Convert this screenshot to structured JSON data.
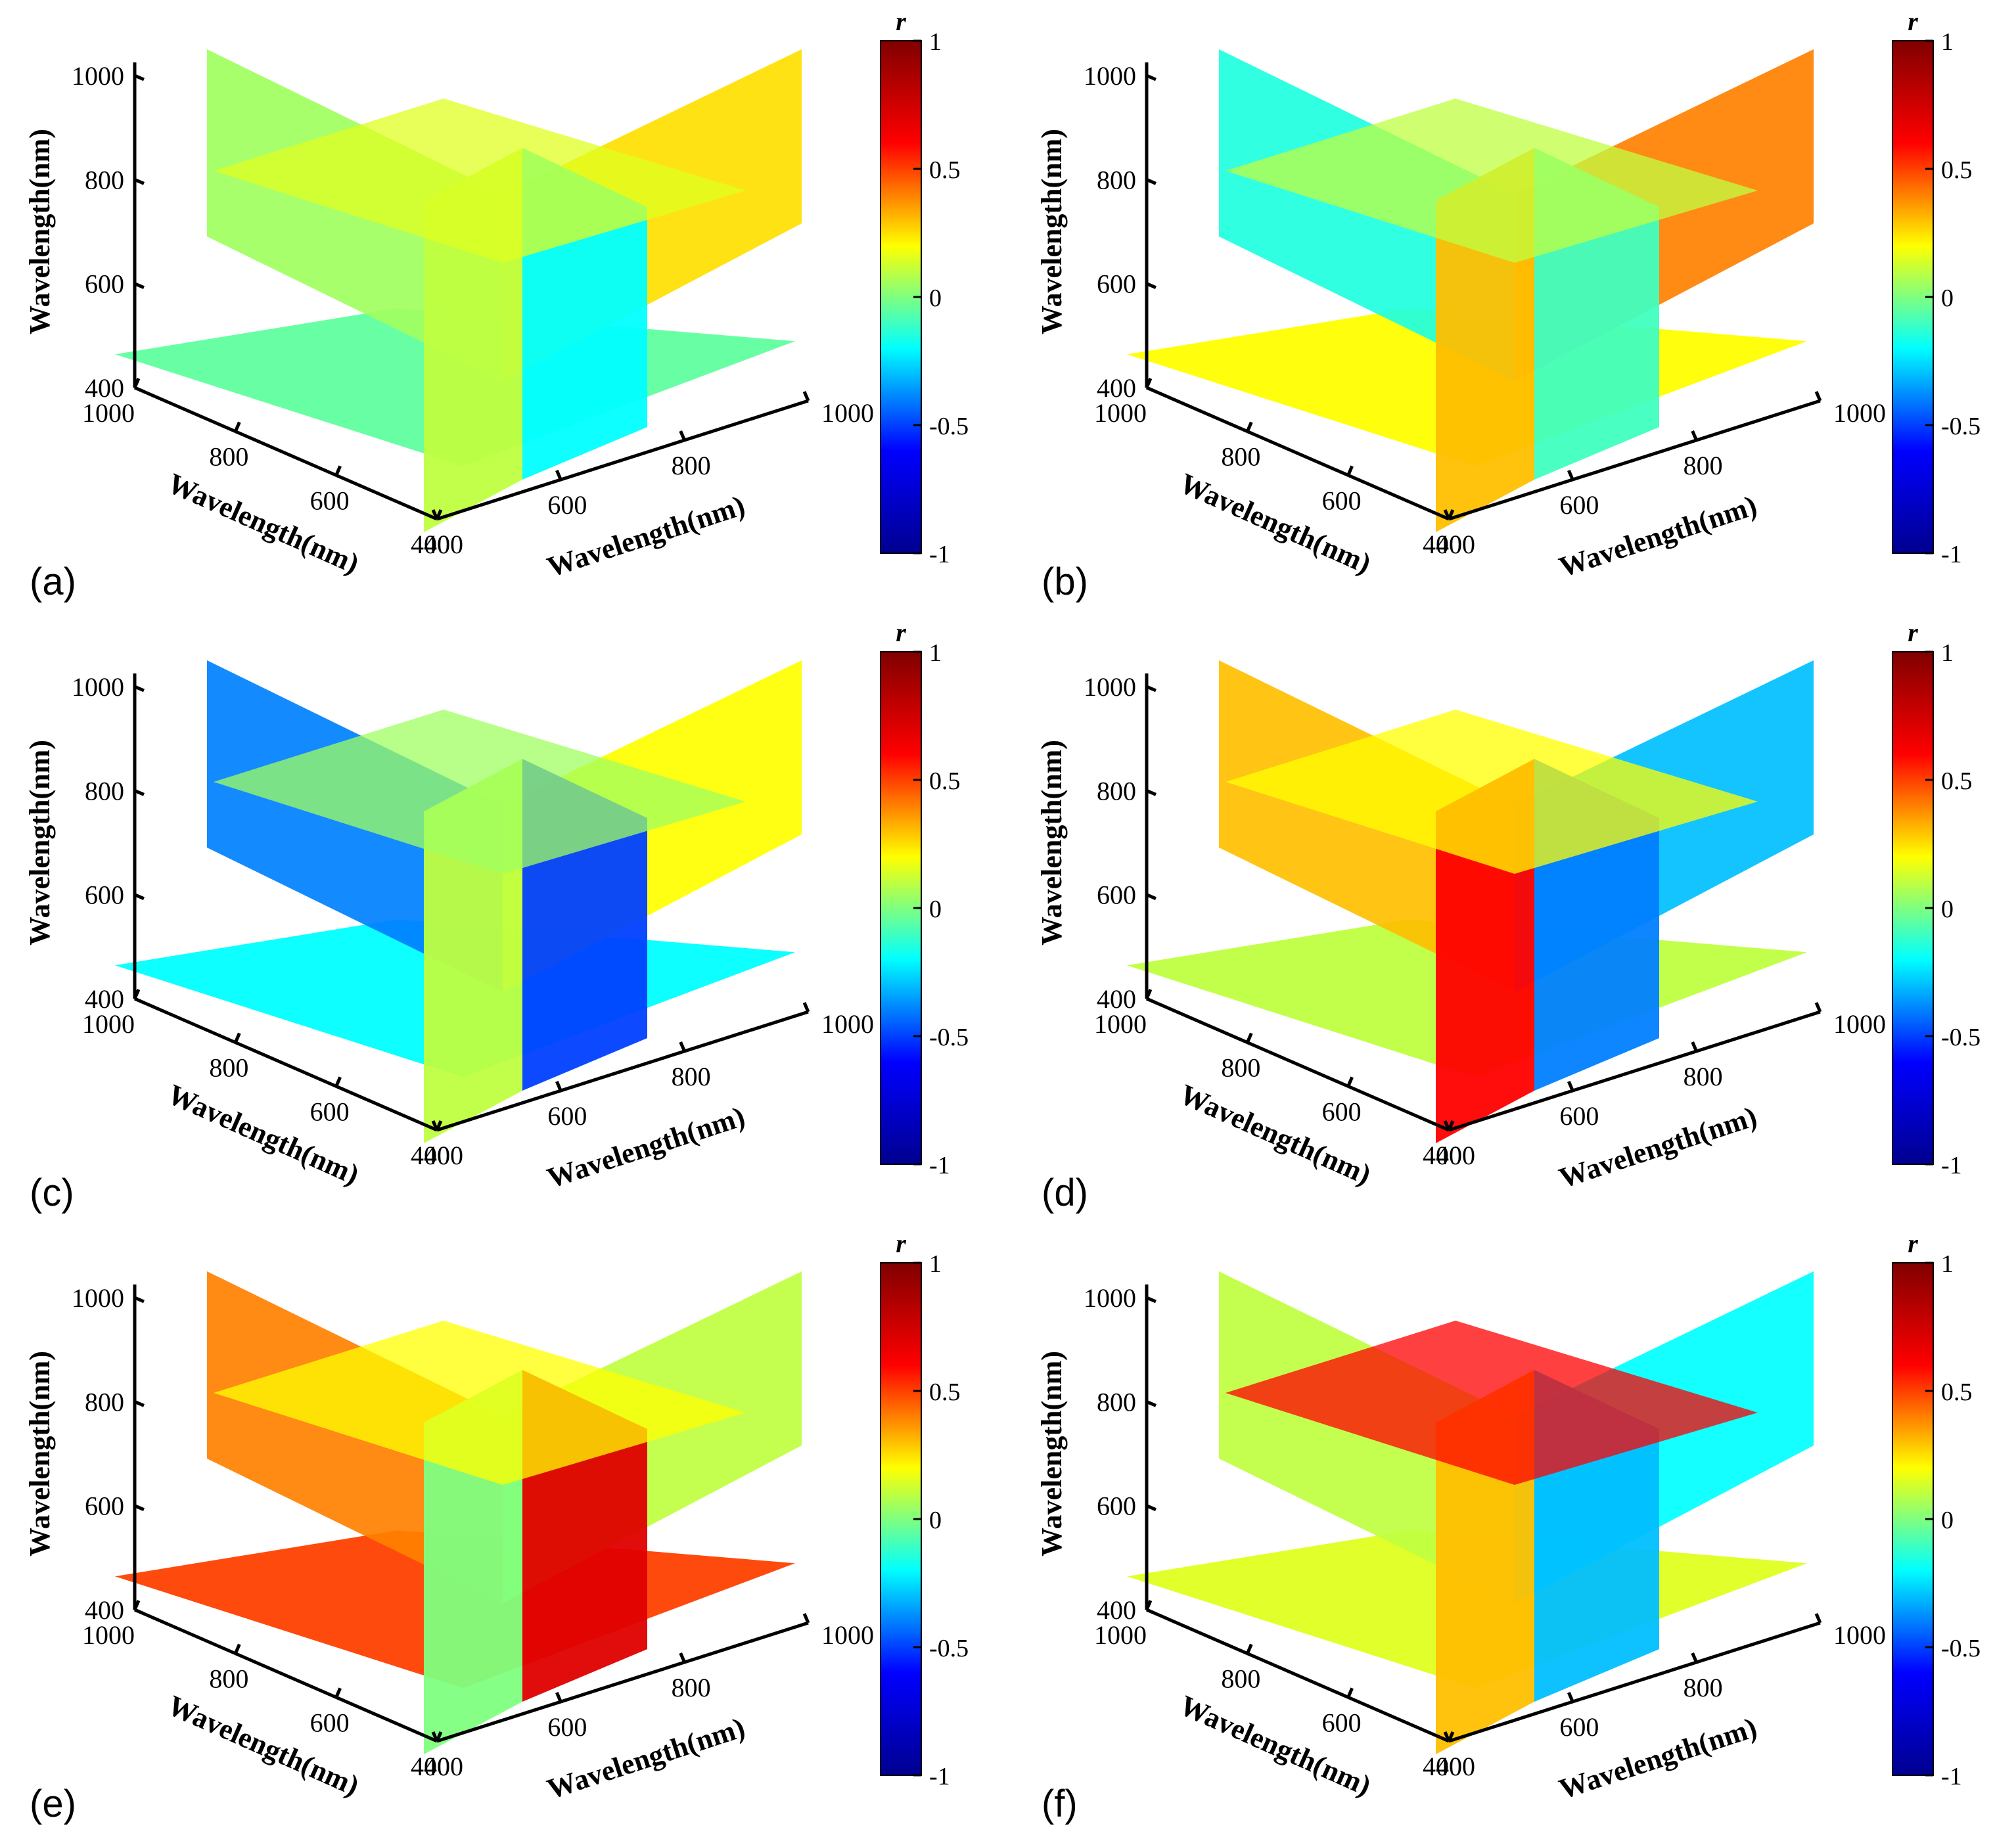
{
  "figure": {
    "description_free": true
  },
  "colorbar": {
    "title": "r",
    "ticks": [
      {
        "value": 1,
        "label": "1"
      },
      {
        "value": 0.5,
        "label": "0.5"
      },
      {
        "value": 0,
        "label": "0"
      },
      {
        "value": -0.5,
        "label": "-0.5"
      },
      {
        "value": -1,
        "label": "-1"
      }
    ],
    "colormap": [
      "#00008f",
      "#0000ff",
      "#00ffff",
      "#ffff00",
      "#ff0000",
      "#800000"
    ]
  },
  "chart_data": [
    {
      "id": "a",
      "panel_label": "(a)",
      "type": "heatmap",
      "xlabel": "Wavelength(nm)",
      "ylabel": "Wavelength(nm)",
      "zlabel": "Wavelength(nm)",
      "x_ticks": [
        "400",
        "600",
        "800",
        "1000"
      ],
      "y_ticks": [
        "400",
        "600",
        "800",
        "1000"
      ],
      "z_ticks": [
        "400",
        "600",
        "800",
        "1000"
      ],
      "xlim": [
        400,
        1000
      ],
      "ylim": [
        400,
        1000
      ],
      "zlim": [
        400,
        1000
      ],
      "slices": {
        "left_wall": 0.05,
        "right_wall": 0.25,
        "floor": -0.05,
        "cut_x": 0.1,
        "cut_y": -0.2,
        "cut_z": 0.15
      },
      "clim": [
        -1,
        1
      ]
    },
    {
      "id": "b",
      "panel_label": "(b)",
      "type": "heatmap",
      "xlabel": "Wavelength(nm)",
      "ylabel": "Wavelength(nm)",
      "zlabel": "Wavelength(nm)",
      "x_ticks": [
        "400",
        "600",
        "800",
        "1000"
      ],
      "y_ticks": [
        "400",
        "600",
        "800",
        "1000"
      ],
      "z_ticks": [
        "400",
        "600",
        "800",
        "1000"
      ],
      "xlim": [
        400,
        1000
      ],
      "ylim": [
        400,
        1000
      ],
      "zlim": [
        400,
        1000
      ],
      "slices": {
        "left_wall": -0.15,
        "right_wall": 0.4,
        "floor": 0.2,
        "cut_x": 0.3,
        "cut_y": -0.1,
        "cut_z": 0.1
      },
      "clim": [
        -1,
        1
      ]
    },
    {
      "id": "c",
      "panel_label": "(c)",
      "type": "heatmap",
      "xlabel": "Wavelength(nm)",
      "ylabel": "Wavelength(nm)",
      "zlabel": "Wavelength(nm)",
      "x_ticks": [
        "400",
        "600",
        "800",
        "1000"
      ],
      "y_ticks": [
        "400",
        "600",
        "800",
        "1000"
      ],
      "z_ticks": [
        "400",
        "600",
        "800",
        "1000"
      ],
      "xlim": [
        400,
        1000
      ],
      "ylim": [
        400,
        1000
      ],
      "zlim": [
        400,
        1000
      ],
      "slices": {
        "left_wall": -0.4,
        "right_wall": 0.2,
        "floor": -0.2,
        "cut_x": 0.1,
        "cut_y": -0.5,
        "cut_z": 0.05
      },
      "clim": [
        -1,
        1
      ]
    },
    {
      "id": "d",
      "panel_label": "(d)",
      "type": "heatmap",
      "xlabel": "Wavelength(nm)",
      "ylabel": "Wavelength(nm)",
      "zlabel": "Wavelength(nm)",
      "x_ticks": [
        "400",
        "600",
        "800",
        "1000"
      ],
      "y_ticks": [
        "400",
        "600",
        "800",
        "1000"
      ],
      "z_ticks": [
        "400",
        "600",
        "800",
        "1000"
      ],
      "xlim": [
        400,
        1000
      ],
      "ylim": [
        400,
        1000
      ],
      "zlim": [
        400,
        1000
      ],
      "slices": {
        "left_wall": 0.3,
        "right_wall": -0.3,
        "floor": 0.1,
        "cut_x": 0.6,
        "cut_y": -0.4,
        "cut_z": 0.2
      },
      "clim": [
        -1,
        1
      ]
    },
    {
      "id": "e",
      "panel_label": "(e)",
      "type": "heatmap",
      "xlabel": "Wavelength(nm)",
      "ylabel": "Wavelength(nm)",
      "zlabel": "Wavelength(nm)",
      "x_ticks": [
        "400",
        "600",
        "800",
        "1000"
      ],
      "y_ticks": [
        "400",
        "600",
        "800",
        "1000"
      ],
      "z_ticks": [
        "400",
        "600",
        "800",
        "1000"
      ],
      "xlim": [
        400,
        1000
      ],
      "ylim": [
        400,
        1000
      ],
      "zlim": [
        400,
        1000
      ],
      "slices": {
        "left_wall": 0.4,
        "right_wall": 0.1,
        "floor": 0.5,
        "cut_x": 0.0,
        "cut_y": 0.7,
        "cut_z": 0.2
      },
      "clim": [
        -1,
        1
      ]
    },
    {
      "id": "f",
      "panel_label": "(f)",
      "type": "heatmap",
      "xlabel": "Wavelength(nm)",
      "ylabel": "Wavelength(nm)",
      "zlabel": "Wavelength(nm)",
      "x_ticks": [
        "400",
        "600",
        "800",
        "1000"
      ],
      "y_ticks": [
        "400",
        "600",
        "800",
        "1000"
      ],
      "z_ticks": [
        "400",
        "600",
        "800",
        "1000"
      ],
      "xlim": [
        400,
        1000
      ],
      "ylim": [
        400,
        1000
      ],
      "zlim": [
        400,
        1000
      ],
      "slices": {
        "left_wall": 0.1,
        "right_wall": -0.2,
        "floor": 0.15,
        "cut_x": 0.3,
        "cut_y": -0.3,
        "cut_z": 0.6
      },
      "clim": [
        -1,
        1
      ]
    }
  ]
}
